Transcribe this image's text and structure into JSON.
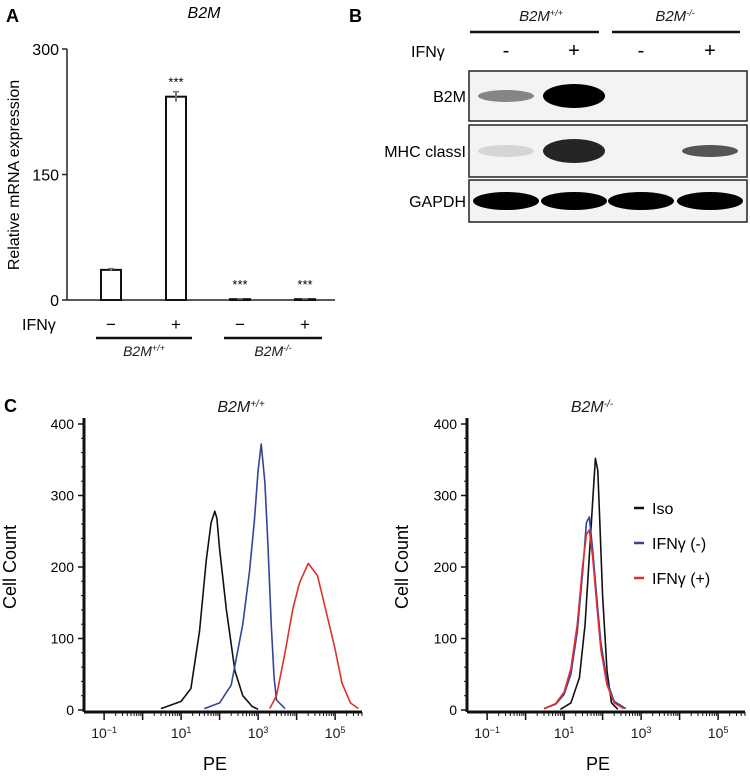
{
  "panels": {
    "a": {
      "label": "A",
      "title": "B2M"
    },
    "b": {
      "label": "B"
    },
    "c": {
      "label": "C"
    }
  },
  "western_blot": {
    "treatment_label": "IFNγ",
    "lane_signs": [
      "-",
      "+",
      "-",
      "+"
    ],
    "groups": [
      {
        "base": "B2M",
        "sup": "+/+"
      },
      {
        "base": "B2M",
        "sup": "-/-"
      }
    ],
    "rows": [
      {
        "label": "B2M",
        "intensity": [
          0.45,
          1.0,
          0.0,
          0.0
        ]
      },
      {
        "label": "MHC classI",
        "intensity": [
          0.12,
          0.85,
          0.0,
          0.65
        ]
      },
      {
        "label": "GAPDH",
        "intensity": [
          1.0,
          1.0,
          1.0,
          1.0
        ]
      }
    ]
  },
  "chart_data": [
    {
      "type": "bar",
      "panel": "A",
      "title": "B2M",
      "ylabel": "Relative mRNA expression",
      "ylim": [
        0,
        300
      ],
      "yticks": [
        0,
        150,
        300
      ],
      "factor_label": "IFNγ",
      "categories": [
        "−",
        "+",
        "−",
        "+"
      ],
      "groups": [
        {
          "base": "B2M",
          "sup": "+/+"
        },
        {
          "base": "B2M",
          "sup": "-/-"
        }
      ],
      "values": [
        36,
        243,
        1,
        1
      ],
      "errors": [
        1.5,
        6,
        0.3,
        0.3
      ],
      "significance": [
        "",
        "***",
        "***",
        "***"
      ],
      "grid": false
    },
    {
      "type": "line",
      "panel": "C",
      "title": {
        "base": "B2M",
        "sup": "+/+"
      },
      "xlabel": "PE",
      "ylabel": "Cell Count",
      "xscale": "log",
      "xlim": [
        0.03,
        500000
      ],
      "ylim": [
        0,
        400
      ],
      "xticks": [
        {
          "base": "10",
          "exp": "−1",
          "value": 0.1
        },
        {
          "base": "10",
          "exp": "1",
          "value": 10
        },
        {
          "base": "10",
          "exp": "3",
          "value": 1000
        },
        {
          "base": "10",
          "exp": "5",
          "value": 100000
        }
      ],
      "yticks": [
        0,
        100,
        200,
        300,
        400
      ],
      "series": [
        {
          "color": "#111111",
          "x": [
            3,
            10,
            18,
            30,
            45,
            60,
            75,
            85,
            100,
            150,
            250,
            400,
            700,
            1000
          ],
          "y": [
            2,
            12,
            30,
            110,
            210,
            262,
            278,
            268,
            225,
            140,
            55,
            20,
            5,
            1
          ]
        },
        {
          "color": "#34449a",
          "x": [
            40,
            100,
            200,
            400,
            600,
            800,
            1000,
            1200,
            1500,
            1800,
            2200,
            2600,
            3000,
            5000
          ],
          "y": [
            2,
            10,
            35,
            120,
            195,
            265,
            335,
            372,
            318,
            232,
            118,
            45,
            14,
            2
          ]
        },
        {
          "color": "#e0302a",
          "x": [
            2000,
            3000,
            5000,
            8000,
            12000,
            20000,
            35000,
            60000,
            100000,
            150000,
            250000,
            400000
          ],
          "y": [
            2,
            20,
            80,
            142,
            178,
            205,
            188,
            135,
            85,
            38,
            10,
            2
          ]
        }
      ]
    },
    {
      "type": "line",
      "panel": "C",
      "title": {
        "base": "B2M",
        "sup": "-/-"
      },
      "xlabel": "PE",
      "ylabel": "Cell Count",
      "xscale": "log",
      "xlim": [
        0.03,
        500000
      ],
      "ylim": [
        0,
        400
      ],
      "xticks": [
        {
          "base": "10",
          "exp": "−1",
          "value": 0.1
        },
        {
          "base": "10",
          "exp": "1",
          "value": 10
        },
        {
          "base": "10",
          "exp": "3",
          "value": 1000
        },
        {
          "base": "10",
          "exp": "5",
          "value": 100000
        }
      ],
      "yticks": [
        0,
        100,
        200,
        300,
        400
      ],
      "legend": {
        "position": "right",
        "entries": [
          "Iso",
          "IFNγ (-)",
          "IFNγ (+)"
        ]
      },
      "series": [
        {
          "name": "Iso",
          "color": "#111111",
          "x": [
            8,
            15,
            25,
            35,
            45,
            55,
            65,
            75,
            85,
            100,
            130,
            170,
            250
          ],
          "y": [
            1,
            10,
            45,
            120,
            215,
            290,
            352,
            335,
            260,
            160,
            55,
            10,
            1
          ]
        },
        {
          "name": "IFNγ (-)",
          "color": "#34449a",
          "x": [
            3,
            6,
            10,
            15,
            22,
            30,
            38,
            45,
            55,
            70,
            90,
            130,
            200,
            400
          ],
          "y": [
            2,
            8,
            22,
            50,
            110,
            190,
            262,
            270,
            225,
            160,
            95,
            40,
            12,
            2
          ]
        },
        {
          "name": "IFNγ (+)",
          "color": "#e0302a",
          "x": [
            3,
            6,
            10,
            15,
            22,
            30,
            38,
            45,
            55,
            70,
            90,
            130,
            200,
            350
          ],
          "y": [
            2,
            9,
            25,
            58,
            120,
            200,
            245,
            252,
            215,
            150,
            85,
            35,
            10,
            2
          ]
        }
      ]
    }
  ]
}
